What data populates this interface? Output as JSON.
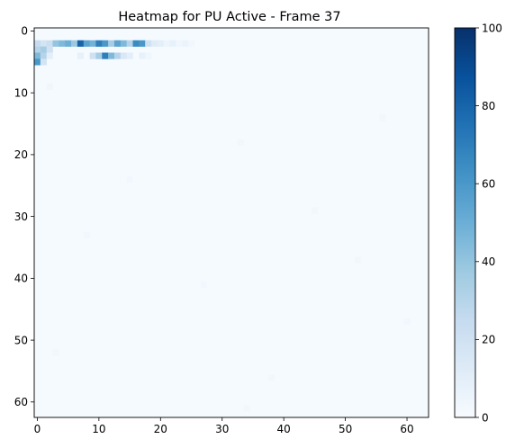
{
  "chart_data": {
    "type": "heatmap",
    "title": "Heatmap for PU Active - Frame 37",
    "xlabel": "",
    "ylabel": "",
    "rows": 63,
    "cols": 64,
    "xlim": [
      -0.5,
      63.5
    ],
    "ylim": [
      62.5,
      -0.5
    ],
    "y_axis_inverted": true,
    "x_ticks": [
      0,
      10,
      20,
      30,
      40,
      50,
      60
    ],
    "y_ticks": [
      0,
      10,
      20,
      30,
      40,
      50,
      60
    ],
    "colormap": "Blues",
    "colormap_stops": [
      "#f7fbff",
      "#deebf7",
      "#c6dbef",
      "#9ecae1",
      "#6baed6",
      "#4292c6",
      "#2171b5",
      "#08519c",
      "#08306b"
    ],
    "vmin": 0,
    "vmax": 100,
    "colorbar_ticks": [
      0,
      20,
      40,
      60,
      80,
      100
    ],
    "background_value": 1,
    "cells": [
      {
        "row": 2,
        "col": 0,
        "value": 25
      },
      {
        "row": 2,
        "col": 1,
        "value": 18
      },
      {
        "row": 2,
        "col": 2,
        "value": 22
      },
      {
        "row": 2,
        "col": 3,
        "value": 40
      },
      {
        "row": 2,
        "col": 4,
        "value": 45
      },
      {
        "row": 2,
        "col": 5,
        "value": 50
      },
      {
        "row": 2,
        "col": 6,
        "value": 38
      },
      {
        "row": 2,
        "col": 7,
        "value": 80
      },
      {
        "row": 2,
        "col": 8,
        "value": 55
      },
      {
        "row": 2,
        "col": 9,
        "value": 48
      },
      {
        "row": 2,
        "col": 10,
        "value": 70
      },
      {
        "row": 2,
        "col": 11,
        "value": 60
      },
      {
        "row": 2,
        "col": 12,
        "value": 35
      },
      {
        "row": 2,
        "col": 13,
        "value": 55
      },
      {
        "row": 2,
        "col": 14,
        "value": 45
      },
      {
        "row": 2,
        "col": 15,
        "value": 30
      },
      {
        "row": 2,
        "col": 16,
        "value": 65
      },
      {
        "row": 2,
        "col": 17,
        "value": 60
      },
      {
        "row": 2,
        "col": 18,
        "value": 20
      },
      {
        "row": 2,
        "col": 19,
        "value": 12
      },
      {
        "row": 2,
        "col": 20,
        "value": 10
      },
      {
        "row": 2,
        "col": 21,
        "value": 5
      },
      {
        "row": 2,
        "col": 22,
        "value": 8
      },
      {
        "row": 2,
        "col": 23,
        "value": 4
      },
      {
        "row": 2,
        "col": 24,
        "value": 6
      },
      {
        "row": 2,
        "col": 25,
        "value": 3
      },
      {
        "row": 3,
        "col": 0,
        "value": 30
      },
      {
        "row": 3,
        "col": 1,
        "value": 35
      },
      {
        "row": 3,
        "col": 2,
        "value": 20
      },
      {
        "row": 4,
        "col": 0,
        "value": 45
      },
      {
        "row": 4,
        "col": 1,
        "value": 30
      },
      {
        "row": 4,
        "col": 2,
        "value": 10
      },
      {
        "row": 4,
        "col": 7,
        "value": 8
      },
      {
        "row": 4,
        "col": 9,
        "value": 20
      },
      {
        "row": 4,
        "col": 10,
        "value": 35
      },
      {
        "row": 4,
        "col": 11,
        "value": 70
      },
      {
        "row": 4,
        "col": 12,
        "value": 45
      },
      {
        "row": 4,
        "col": 13,
        "value": 30
      },
      {
        "row": 4,
        "col": 14,
        "value": 15
      },
      {
        "row": 4,
        "col": 15,
        "value": 10
      },
      {
        "row": 4,
        "col": 17,
        "value": 8
      },
      {
        "row": 4,
        "col": 18,
        "value": 4
      },
      {
        "row": 5,
        "col": 0,
        "value": 60
      },
      {
        "row": 5,
        "col": 1,
        "value": 18
      },
      {
        "row": 9,
        "col": 2,
        "value": 4
      },
      {
        "row": 14,
        "col": 56,
        "value": 3
      },
      {
        "row": 18,
        "col": 33,
        "value": 3
      },
      {
        "row": 24,
        "col": 15,
        "value": 3
      },
      {
        "row": 29,
        "col": 45,
        "value": 3
      },
      {
        "row": 33,
        "col": 8,
        "value": 3
      },
      {
        "row": 37,
        "col": 52,
        "value": 3
      },
      {
        "row": 41,
        "col": 27,
        "value": 3
      },
      {
        "row": 47,
        "col": 60,
        "value": 3
      },
      {
        "row": 52,
        "col": 3,
        "value": 3
      },
      {
        "row": 56,
        "col": 38,
        "value": 3
      },
      {
        "row": 61,
        "col": 34,
        "value": 3
      }
    ]
  }
}
